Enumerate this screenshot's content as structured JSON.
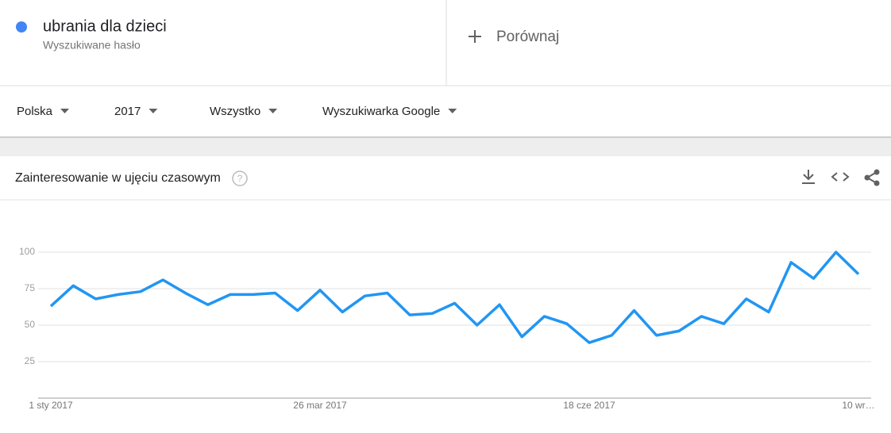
{
  "search_term": {
    "name": "ubrania dla dzieci",
    "subtitle": "Wyszukiwane hasło"
  },
  "compare": "Porównaj",
  "filters": [
    "Polska",
    "2017",
    "Wszystko",
    "Wyszukiwarka Google"
  ],
  "chart_data": {
    "type": "line",
    "title": "Zainteresowanie w ujęciu czasowym",
    "categories": [
      "1 sty 2017",
      null,
      null,
      null,
      null,
      null,
      null,
      null,
      null,
      null,
      null,
      null,
      "26 mar 2017",
      null,
      null,
      null,
      null,
      null,
      null,
      null,
      null,
      null,
      null,
      null,
      "18 cze 2017",
      null,
      null,
      null,
      null,
      null,
      null,
      null,
      null,
      null,
      null,
      null,
      "10 wr…"
    ],
    "series": [
      {
        "name": "ubrania dla dzieci",
        "color": "#2196f3",
        "values": [
          63,
          77,
          68,
          71,
          73,
          81,
          72,
          64,
          71,
          71,
          72,
          60,
          74,
          59,
          70,
          72,
          57,
          58,
          65,
          50,
          64,
          42,
          56,
          51,
          38,
          43,
          60,
          43,
          46,
          56,
          51,
          68,
          59,
          93,
          82,
          100,
          85
        ]
      }
    ],
    "ylim": [
      0,
      100
    ],
    "yticks": [
      25,
      50,
      75,
      100
    ],
    "grid": true
  }
}
